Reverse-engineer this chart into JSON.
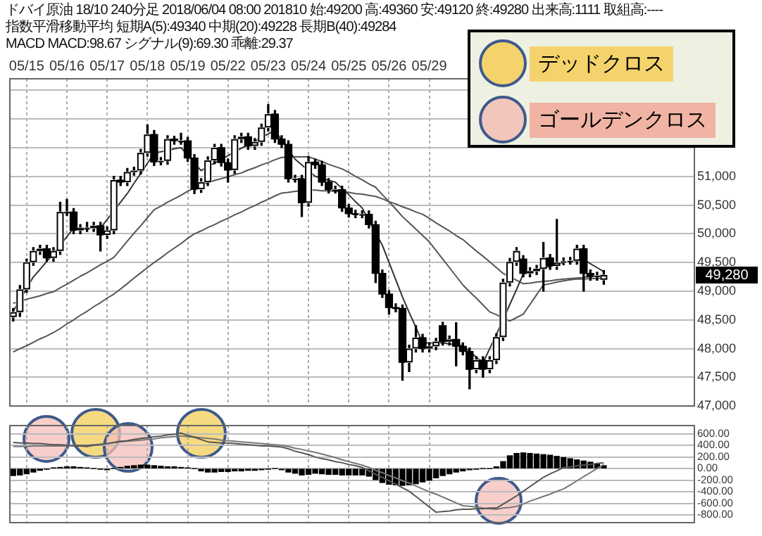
{
  "chart_data": [
    {
      "type": "candlestick",
      "title": "ドバイ原油 18/10 240分足 2018/06/04 08:00 201810 始:49200 高:49360 安:49120 終:49280 出来高:1111 取組高:----",
      "subtitle": "指数平滑移動平均 短期A(5):49340 中期(20):49228 長期B(40):49284",
      "annotations": [
        "MACD MACD:98.67 シグナル(9):69.30 乖離:29.37",
        "49,280",
        "デッドクロス",
        "ゴールデンクロス"
      ],
      "color": "#000000",
      "grid": true,
      "marker": "none",
      "colors": [
        "#ffffff",
        "#ffffff",
        "#ffffff",
        "#ffffff",
        "#ffffff",
        "#000000",
        "#ffffff",
        "#ffffff",
        "#ffffff",
        "#000000",
        "#ffffff",
        "#ffffff",
        "#ffffff",
        "#000000",
        "#ffffff",
        "#ffffff",
        "#000000",
        "#ffffff",
        "#ffffff",
        "#ffffff",
        "#ffffff",
        "#000000",
        "#ffffff",
        "#ffffff",
        "#000000",
        "#ffffff",
        "#000000",
        "#000000",
        "#ffffff",
        "#ffffff",
        "#ffffff",
        "#000000",
        "#000000",
        "#ffffff",
        "#ffffff",
        "#000000",
        "#ffffff",
        "#ffffff",
        "#ffffff",
        "#000000",
        "#000000",
        "#000000",
        "#ffffff",
        "#000000",
        "#ffffff",
        "#000000",
        "#000000",
        "#000000",
        "#ffffff",
        "#000000",
        "#000000",
        "#000000",
        "#ffffff",
        "#000000",
        "#000000",
        "#000000",
        "#000000",
        "#000000",
        "#000000",
        "#ffffff",
        "#ffffff",
        "#000000",
        "#ffffff",
        "#ffffff",
        "#000000",
        "#ffffff",
        "#000000",
        "#000000",
        "#000000",
        "#ffffff",
        "#000000",
        "#ffffff",
        "#ffffff",
        "#ffffff",
        "#ffffff",
        "#ffffff",
        "#000000",
        "#ffffff",
        "#ffffff",
        "#ffffff",
        "#000000",
        "#ffffff",
        "#ffffff",
        "#ffffff",
        "#ffffff",
        "#000000",
        "#000000",
        "#ffffff",
        "#ffffff",
        null,
        null,
        null,
        null,
        null,
        null,
        null,
        null,
        null,
        null,
        null,
        null,
        null
      ],
      "categories": [
        null,
        null,
        "05/15",
        null,
        null,
        null,
        null,
        null,
        "05/16",
        null,
        null,
        null,
        null,
        null,
        "05/17",
        null,
        null,
        null,
        null,
        null,
        "05/18",
        null,
        null,
        null,
        null,
        null,
        "05/19",
        null,
        null,
        null,
        null,
        null,
        "05/22",
        null,
        null,
        null,
        null,
        null,
        "05/23",
        null,
        null,
        null,
        null,
        null,
        "05/24",
        null,
        null,
        null,
        null,
        null,
        "05/25",
        null,
        null,
        null,
        null,
        null,
        "05/26",
        null,
        null,
        null,
        null,
        null,
        "05/29",
        null,
        null,
        null,
        null,
        null,
        null,
        null,
        null,
        null,
        null,
        null,
        null,
        null,
        null,
        null,
        null,
        null,
        null,
        null,
        null,
        null,
        null,
        null,
        null,
        null,
        null,
        null,
        null,
        null,
        null,
        null,
        null,
        null,
        null,
        null,
        null,
        null,
        null,
        null
      ],
      "ohlc": [
        [
          48550,
          48700,
          48480,
          48635
        ],
        [
          48635,
          49100,
          48560,
          49030
        ],
        [
          49030,
          49560,
          48980,
          49506
        ],
        [
          49506,
          49760,
          49450,
          49700
        ],
        [
          49700,
          49800,
          49640,
          49740
        ],
        [
          49740,
          49800,
          49520,
          49580
        ],
        [
          49580,
          49760,
          49520,
          49700
        ],
        [
          49700,
          50550,
          49640,
          50380
        ],
        [
          50380,
          50600,
          50320,
          50380
        ],
        [
          50380,
          50440,
          50000,
          50060
        ],
        [
          50060,
          50160,
          50000,
          50100
        ],
        [
          50100,
          50200,
          50040,
          50100
        ],
        [
          50100,
          50200,
          50040,
          50140
        ],
        [
          50140,
          50200,
          49700,
          49980
        ],
        [
          49980,
          50120,
          49920,
          50060
        ],
        [
          50060,
          51000,
          50000,
          50935
        ],
        [
          50935,
          51000,
          50840,
          50900
        ],
        [
          50900,
          51140,
          50840,
          51075
        ],
        [
          51075,
          51160,
          51020,
          51100
        ],
        [
          51100,
          51470,
          51040,
          51410
        ],
        [
          51410,
          51900,
          51350,
          51730
        ],
        [
          51730,
          51800,
          51190,
          51250
        ],
        [
          51250,
          51330,
          51200,
          51270
        ],
        [
          51270,
          51710,
          51210,
          51650
        ],
        [
          51650,
          51700,
          51560,
          51620
        ],
        [
          51620,
          51750,
          51560,
          51620
        ],
        [
          51620,
          51680,
          51260,
          51320
        ],
        [
          51320,
          51380,
          50700,
          50775
        ],
        [
          50775,
          50960,
          50720,
          50900
        ],
        [
          50900,
          51340,
          50840,
          51280
        ],
        [
          51280,
          51560,
          51220,
          51500
        ],
        [
          51500,
          51560,
          51180,
          51240
        ],
        [
          51240,
          51300,
          50900,
          51110
        ],
        [
          51110,
          51710,
          51050,
          51650
        ],
        [
          51650,
          51750,
          51590,
          51690
        ],
        [
          51690,
          51750,
          51470,
          51530
        ],
        [
          51530,
          51660,
          51470,
          51600
        ],
        [
          51600,
          51910,
          51540,
          51850
        ],
        [
          51850,
          52250,
          51790,
          52085
        ],
        [
          52085,
          52150,
          51590,
          51650
        ],
        [
          51650,
          51710,
          51500,
          51560
        ],
        [
          51560,
          51620,
          50900,
          50960
        ],
        [
          50960,
          51020,
          50900,
          50960
        ],
        [
          50960,
          51020,
          50300,
          50540
        ],
        [
          50540,
          51350,
          50480,
          51250
        ],
        [
          51250,
          51300,
          51140,
          51200
        ],
        [
          51200,
          51260,
          50840,
          50900
        ],
        [
          50900,
          50960,
          50710,
          50770
        ],
        [
          50770,
          50830,
          50710,
          50770
        ],
        [
          50770,
          50830,
          50390,
          50450
        ],
        [
          50450,
          50510,
          50290,
          50350
        ],
        [
          50350,
          50410,
          50280,
          50340
        ],
        [
          50340,
          50400,
          50280,
          50340
        ],
        [
          50340,
          50400,
          50100,
          50160
        ],
        [
          50160,
          50220,
          49150,
          49310
        ],
        [
          49310,
          49370,
          48890,
          48950
        ],
        [
          48950,
          49010,
          48600,
          48715
        ],
        [
          48715,
          48780,
          48640,
          48700
        ],
        [
          48700,
          48760,
          47450,
          47760
        ],
        [
          47760,
          48060,
          47600,
          48000
        ],
        [
          48000,
          48400,
          47940,
          48190
        ],
        [
          48190,
          48250,
          47940,
          48000
        ],
        [
          48000,
          48100,
          47940,
          48040
        ],
        [
          48040,
          48180,
          47980,
          48120
        ],
        [
          48400,
          48460,
          48060,
          48120
        ],
        [
          48120,
          48220,
          48060,
          48160
        ],
        [
          48160,
          48450,
          47700,
          48040
        ],
        [
          48040,
          48100,
          47890,
          47950
        ],
        [
          47950,
          48010,
          47300,
          47640
        ],
        [
          47640,
          47860,
          47580,
          47800
        ],
        [
          47800,
          47860,
          47500,
          47640
        ],
        [
          47640,
          47860,
          47580,
          47800
        ],
        [
          47800,
          48260,
          47740,
          48200
        ],
        [
          48200,
          49210,
          48140,
          49150
        ],
        [
          49150,
          49570,
          49090,
          49510
        ],
        [
          49510,
          49760,
          49450,
          49700
        ],
        [
          49560,
          49620,
          49250,
          49310
        ],
        [
          49310,
          49410,
          49250,
          49350
        ],
        [
          49350,
          49450,
          49290,
          49390
        ],
        [
          49390,
          49850,
          49000,
          49580
        ],
        [
          49580,
          49640,
          49380,
          49440
        ],
        [
          49440,
          50250,
          49380,
          49500
        ],
        [
          49500,
          49580,
          49460,
          49520
        ],
        [
          49520,
          49590,
          49470,
          49530
        ],
        [
          49530,
          49800,
          49470,
          49740
        ],
        [
          49740,
          49800,
          49000,
          49310
        ],
        [
          49310,
          49370,
          49190,
          49250
        ],
        [
          49250,
          49330,
          49190,
          49270
        ],
        [
          49200,
          49360,
          49120,
          49280
        ],
        null,
        null,
        null,
        null,
        null,
        null,
        null,
        null,
        null,
        null,
        null,
        null,
        null
      ],
      "series": [
        {
          "type": "line",
          "color": "#333333",
          "values": [
            48650,
            48850,
            49050,
            49250,
            49380,
            49520,
            49650,
            49800,
            49950,
            50100,
            50100,
            50100,
            50100,
            50100,
            50250,
            50400,
            50550,
            50700,
            50880,
            51050,
            51230,
            51400,
            51430,
            51450,
            51480,
            51500,
            51370,
            51230,
            51100,
            51170,
            51230,
            51300,
            51360,
            51430,
            51490,
            51550,
            51610,
            51680,
            51740,
            51800,
            51630,
            51470,
            51300,
            51200,
            51100,
            51000,
            50970,
            50930,
            50900,
            50790,
            50680,
            50560,
            50450,
            50230,
            50020,
            49800,
            49500,
            49200,
            48900,
            48630,
            48370,
            48100,
            48100,
            48100,
            48100,
            48080,
            48070,
            48050,
            47950,
            47850,
            47750,
            48000,
            48250,
            48500,
            48770,
            49030,
            49300,
            49330,
            49370,
            49400,
            49430,
            49470,
            49500,
            49520,
            49530,
            49550,
            49480,
            49410,
            49340,
            null,
            null,
            null,
            null,
            null,
            null,
            null,
            null,
            null,
            null,
            null,
            null,
            null
          ]
        },
        {
          "type": "line",
          "color": "#555555",
          "values": [
            48790,
            48820,
            48860,
            48890,
            48920,
            48960,
            48990,
            49060,
            49120,
            49190,
            49260,
            49320,
            49390,
            49460,
            49520,
            49590,
            49730,
            49870,
            50010,
            50140,
            50280,
            50420,
            50480,
            50550,
            50610,
            50670,
            50740,
            50800,
            50860,
            50890,
            50930,
            50960,
            50990,
            51030,
            51060,
            51110,
            51150,
            51200,
            51240,
            51290,
            51330,
            51330,
            51340,
            51340,
            51340,
            51300,
            51260,
            51210,
            51170,
            51130,
            51070,
            51000,
            50940,
            50870,
            50810,
            50680,
            50560,
            50430,
            50300,
            50190,
            50080,
            49970,
            49860,
            49710,
            49560,
            49410,
            49260,
            49110,
            48990,
            48880,
            48760,
            48640,
            48590,
            48530,
            48480,
            48540,
            48600,
            48770,
            48940,
            49110,
            49130,
            49160,
            49180,
            49200,
            49210,
            49210,
            49220,
            49220,
            49230,
            null,
            null,
            null,
            null,
            null,
            null,
            null,
            null,
            null,
            null,
            null,
            null,
            null
          ]
        },
        {
          "type": "line",
          "color": "#555555",
          "values": [
            47940,
            48000,
            48050,
            48110,
            48170,
            48220,
            48280,
            48350,
            48430,
            48500,
            48580,
            48650,
            48730,
            48800,
            48880,
            48950,
            49040,
            49130,
            49230,
            49320,
            49410,
            49500,
            49580,
            49670,
            49750,
            49830,
            49920,
            50000,
            50050,
            50110,
            50160,
            50220,
            50270,
            50330,
            50380,
            50440,
            50490,
            50550,
            50600,
            50660,
            50710,
            50720,
            50740,
            50750,
            50760,
            50760,
            50750,
            50750,
            50740,
            50740,
            50720,
            50700,
            50690,
            50670,
            50650,
            50610,
            50560,
            50520,
            50470,
            50430,
            50380,
            50340,
            50270,
            50190,
            50120,
            50050,
            49970,
            49900,
            49800,
            49700,
            49610,
            49510,
            49410,
            49310,
            49250,
            49190,
            49130,
            49140,
            49160,
            49170,
            49180,
            49200,
            49210,
            49220,
            49230,
            49240,
            49260,
            49270,
            49280,
            null,
            null,
            null,
            null,
            null,
            null,
            null,
            null,
            null,
            null,
            null,
            null,
            null
          ]
        }
      ],
      "ylim": [
        47000,
        52700
      ],
      "yticks": [
        {
          "value": 47000,
          "label": "47,000"
        },
        {
          "value": 47500,
          "label": "47,500"
        },
        {
          "value": 48000,
          "label": "48,000"
        },
        {
          "value": 48500,
          "label": "48,500"
        },
        {
          "value": 49000,
          "label": "49,000"
        },
        {
          "value": 49500,
          "label": "49,500"
        },
        {
          "value": 50000,
          "label": "50,000"
        },
        {
          "value": 50500,
          "label": "50,500"
        },
        {
          "value": 51000,
          "label": "51,000"
        },
        {
          "value": 51500,
          "label": null
        },
        {
          "value": 52000,
          "label": null
        },
        {
          "value": 52500,
          "label": null
        }
      ]
    },
    {
      "type": "bar",
      "grid": true,
      "marker": "none",
      "tick_labels": "y",
      "categories": [
        null,
        null,
        null,
        null,
        null,
        null,
        null,
        null,
        null,
        null,
        null,
        null,
        null,
        null,
        null,
        null,
        null,
        null,
        null,
        null,
        null,
        null,
        null,
        null,
        null,
        null,
        null,
        null,
        null,
        null,
        null,
        null,
        null,
        null,
        null,
        null,
        null,
        null,
        null,
        null,
        null,
        null,
        null,
        null,
        null,
        null,
        null,
        null,
        null,
        null,
        null,
        null,
        null,
        null,
        null,
        null,
        null,
        null,
        null,
        null,
        null,
        null,
        null,
        null,
        null,
        null,
        null,
        null,
        null,
        null,
        null,
        null,
        null,
        null,
        null,
        null,
        null,
        null,
        null,
        null,
        null,
        null,
        null,
        null,
        null,
        null,
        null,
        null,
        null,
        null,
        null,
        null,
        null,
        null,
        null,
        null,
        null,
        null,
        null,
        null,
        null,
        null
      ],
      "series": [
        {
          "type": "bar",
          "color": "#000000",
          "values": [
            -120,
            -110,
            -90,
            -60,
            -30,
            -10,
            10,
            20,
            30,
            30,
            20,
            10,
            0,
            -10,
            -20,
            0,
            20,
            40,
            50,
            60,
            60,
            50,
            40,
            30,
            30,
            20,
            10,
            0,
            -40,
            -60,
            -60,
            -50,
            -50,
            -40,
            -40,
            -30,
            -30,
            -20,
            -10,
            0,
            -20,
            -60,
            -80,
            -110,
            -100,
            -80,
            -90,
            -100,
            -100,
            -110,
            -110,
            -110,
            -110,
            -130,
            -190,
            -240,
            -270,
            -280,
            -290,
            -280,
            -260,
            -230,
            -200,
            -160,
            -120,
            -90,
            -60,
            -40,
            -20,
            -10,
            0,
            0,
            30,
            120,
            220,
            260,
            270,
            260,
            250,
            240,
            230,
            210,
            190,
            170,
            150,
            130,
            110,
            80,
            50,
            null,
            null,
            null,
            null,
            null,
            null,
            null,
            null,
            null,
            null,
            null,
            null,
            null
          ]
        },
        {
          "type": "line",
          "color": "#555555",
          "values": [
            450,
            440,
            440,
            430,
            430,
            420,
            410,
            410,
            400,
            390,
            390,
            380,
            400,
            410,
            430,
            450,
            470,
            480,
            500,
            520,
            530,
            550,
            560,
            580,
            590,
            610,
            570,
            540,
            500,
            460,
            450,
            440,
            440,
            430,
            420,
            410,
            400,
            390,
            390,
            380,
            370,
            340,
            300,
            270,
            240,
            200,
            170,
            150,
            120,
            100,
            70,
            50,
            20,
            -40,
            -100,
            -150,
            -210,
            -270,
            -330,
            -390,
            -480,
            -570,
            -660,
            -750,
            -740,
            -730,
            -710,
            -700,
            -700,
            -690,
            -690,
            -680,
            -680,
            -610,
            -540,
            -470,
            -390,
            -310,
            -230,
            -150,
            -90,
            -40,
            20,
            30,
            50,
            60,
            70,
            90,
            100,
            null,
            null,
            null,
            null,
            null,
            null,
            null,
            null,
            null,
            null,
            null,
            null,
            null
          ]
        },
        {
          "type": "line",
          "color": "#777777",
          "values": [
            380,
            380,
            380,
            390,
            390,
            390,
            390,
            390,
            390,
            400,
            400,
            400,
            410,
            420,
            430,
            450,
            460,
            470,
            480,
            490,
            500,
            510,
            530,
            540,
            550,
            560,
            550,
            540,
            530,
            520,
            510,
            490,
            480,
            470,
            460,
            450,
            440,
            430,
            420,
            410,
            400,
            380,
            350,
            330,
            300,
            280,
            250,
            220,
            190,
            150,
            120,
            90,
            60,
            20,
            -30,
            -70,
            -120,
            -160,
            -210,
            -250,
            -300,
            -350,
            -400,
            -440,
            -490,
            -540,
            -590,
            -640,
            -650,
            -660,
            -680,
            -690,
            -700,
            -680,
            -670,
            -650,
            -610,
            -560,
            -520,
            -480,
            -440,
            -390,
            -350,
            -280,
            -210,
            -140,
            -70,
            0,
            70,
            null,
            null,
            null,
            null,
            null,
            null,
            null,
            null,
            null,
            null,
            null,
            null,
            null
          ]
        }
      ],
      "ylim": [
        -930,
        740
      ],
      "yticks": [
        {
          "value": 600,
          "label": "600.00"
        },
        {
          "value": 400,
          "label": "400.00"
        },
        {
          "value": 200,
          "label": "200.00"
        },
        {
          "value": 0,
          "label": "0.00"
        },
        {
          "value": -200,
          "label": "-200.00"
        },
        {
          "value": -400,
          "label": "-400.00"
        },
        {
          "value": -600,
          "label": "-600.00"
        },
        {
          "value": -800,
          "label": "-800.00"
        }
      ]
    }
  ]
}
